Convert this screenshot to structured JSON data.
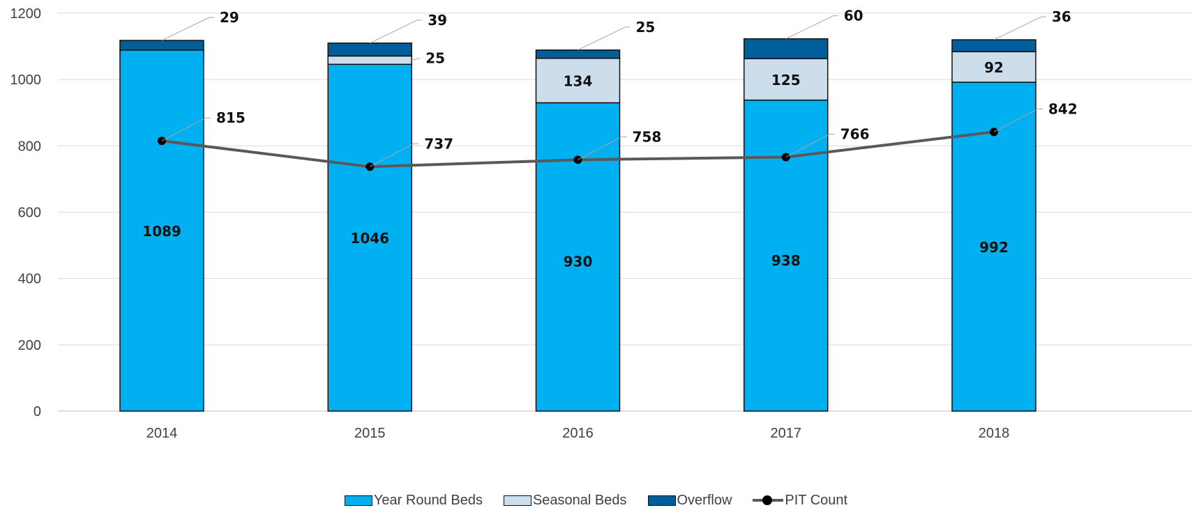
{
  "chart_data": {
    "type": "bar",
    "stacked": true,
    "categories": [
      "2014",
      "2015",
      "2016",
      "2017",
      "2018"
    ],
    "series": [
      {
        "name": "Year Round Beds",
        "values": [
          1089,
          1046,
          930,
          938,
          992
        ],
        "color": "#00B0F0"
      },
      {
        "name": "Seasonal Beds",
        "values": [
          0,
          25,
          134,
          125,
          92
        ],
        "color": "#CCDDEB"
      },
      {
        "name": "Overflow",
        "values": [
          29,
          39,
          25,
          60,
          36
        ],
        "color": "#005E9B"
      }
    ],
    "line_series": {
      "name": "PIT Count",
      "type": "line",
      "values": [
        815,
        737,
        758,
        766,
        842
      ],
      "color": "#595959",
      "marker_color": "#000000"
    },
    "yticks": [
      "0",
      "200",
      "400",
      "600",
      "800",
      "1000",
      "1200"
    ],
    "ylim": [
      0,
      1200
    ],
    "grid": true,
    "legend_position": "bottom",
    "title": "",
    "xlabel": "",
    "ylabel": ""
  }
}
